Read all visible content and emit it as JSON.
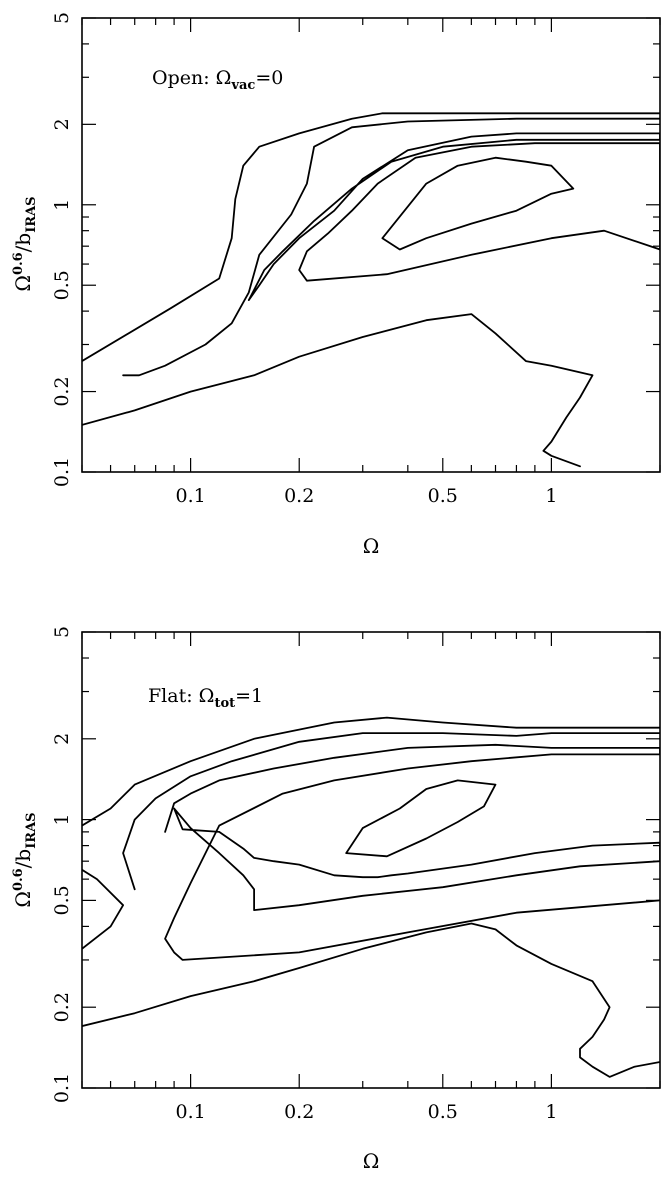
{
  "chart_data": [
    {
      "type": "contour",
      "annotation": {
        "prefix": "Open: ",
        "symbol": "Ω",
        "sub": "vac",
        "suffix": "=0"
      },
      "xlabel": "Ω",
      "ylabel": {
        "base": "Ω",
        "sup": "0.6",
        "mid": "/b",
        "sub": "IRAS"
      },
      "xscale": "log",
      "yscale": "log",
      "xlim": [
        0.05,
        2.0
      ],
      "ylim": [
        0.1,
        5.0
      ],
      "xticks": [
        {
          "v": 0.1,
          "label": "0.1"
        },
        {
          "v": 0.2,
          "label": "0.2"
        },
        {
          "v": 0.5,
          "label": "0.5"
        },
        {
          "v": 1,
          "label": "1"
        }
      ],
      "yticks": [
        {
          "v": 0.1,
          "label": "0.1"
        },
        {
          "v": 0.2,
          "label": "0.2"
        },
        {
          "v": 0.5,
          "label": "0.5"
        },
        {
          "v": 1,
          "label": "1"
        },
        {
          "v": 2,
          "label": "2"
        },
        {
          "v": 5,
          "label": "5"
        }
      ],
      "contours": [
        [
          [
            0.05,
            0.26
          ],
          [
            0.088,
            0.41
          ],
          [
            0.12,
            0.53
          ],
          [
            0.13,
            0.75
          ],
          [
            0.133,
            1.05
          ],
          [
            0.14,
            1.4
          ],
          [
            0.155,
            1.65
          ],
          [
            0.2,
            1.85
          ],
          [
            0.28,
            2.1
          ],
          [
            0.34,
            2.2
          ],
          [
            0.6,
            2.2
          ],
          [
            1.0,
            2.2
          ],
          [
            2.0,
            2.2
          ]
        ],
        [
          [
            0.065,
            0.23
          ],
          [
            0.072,
            0.23
          ],
          [
            0.085,
            0.25
          ],
          [
            0.11,
            0.3
          ],
          [
            0.13,
            0.36
          ],
          [
            0.145,
            0.47
          ],
          [
            0.155,
            0.65
          ],
          [
            0.19,
            0.92
          ],
          [
            0.21,
            1.2
          ],
          [
            0.22,
            1.65
          ],
          [
            0.28,
            1.95
          ],
          [
            0.4,
            2.05
          ],
          [
            0.8,
            2.1
          ],
          [
            2.0,
            2.1
          ]
        ],
        [
          [
            0.145,
            0.44
          ],
          [
            0.16,
            0.57
          ],
          [
            0.18,
            0.67
          ],
          [
            0.22,
            0.87
          ],
          [
            0.28,
            1.15
          ],
          [
            0.36,
            1.45
          ],
          [
            0.5,
            1.65
          ],
          [
            0.8,
            1.75
          ],
          [
            2.0,
            1.75
          ],
          [
            2.0,
            1.85
          ],
          [
            0.8,
            1.85
          ],
          [
            0.6,
            1.8
          ],
          [
            0.4,
            1.6
          ],
          [
            0.3,
            1.25
          ],
          [
            0.25,
            0.95
          ],
          [
            0.2,
            0.75
          ],
          [
            0.17,
            0.6
          ],
          [
            0.155,
            0.5
          ],
          [
            0.145,
            0.44
          ]
        ],
        [
          [
            0.2,
            0.57
          ],
          [
            0.21,
            0.67
          ],
          [
            0.24,
            0.78
          ],
          [
            0.28,
            0.95
          ],
          [
            0.33,
            1.2
          ],
          [
            0.42,
            1.5
          ],
          [
            0.6,
            1.65
          ],
          [
            0.9,
            1.7
          ],
          [
            2.0,
            1.7
          ],
          [
            2.0,
            0.68
          ],
          [
            1.4,
            0.8
          ],
          [
            1.0,
            0.75
          ],
          [
            0.6,
            0.65
          ],
          [
            0.35,
            0.55
          ],
          [
            0.21,
            0.52
          ],
          [
            0.2,
            0.57
          ]
        ],
        [
          [
            0.34,
            0.75
          ],
          [
            0.45,
            1.2
          ],
          [
            0.55,
            1.4
          ],
          [
            0.7,
            1.5
          ],
          [
            0.85,
            1.45
          ],
          [
            1.0,
            1.4
          ],
          [
            1.15,
            1.15
          ],
          [
            1.0,
            1.1
          ],
          [
            0.8,
            0.95
          ],
          [
            0.6,
            0.85
          ],
          [
            0.45,
            0.75
          ],
          [
            0.38,
            0.68
          ],
          [
            0.34,
            0.75
          ]
        ],
        [
          [
            0.05,
            0.15
          ],
          [
            0.07,
            0.17
          ],
          [
            0.1,
            0.2
          ],
          [
            0.15,
            0.23
          ],
          [
            0.2,
            0.27
          ],
          [
            0.3,
            0.32
          ],
          [
            0.45,
            0.37
          ],
          [
            0.6,
            0.39
          ],
          [
            0.7,
            0.33
          ],
          [
            0.85,
            0.26
          ],
          [
            1.0,
            0.25
          ],
          [
            1.3,
            0.23
          ],
          [
            1.2,
            0.19
          ],
          [
            1.1,
            0.16
          ],
          [
            1.0,
            0.13
          ],
          [
            0.95,
            0.12
          ],
          [
            1.0,
            0.115
          ],
          [
            1.2,
            0.105
          ]
        ]
      ]
    },
    {
      "type": "contour",
      "annotation": {
        "prefix": "Flat: ",
        "symbol": "Ω",
        "sub": "tot",
        "suffix": "=1"
      },
      "xlabel": "Ω",
      "ylabel": {
        "base": "Ω",
        "sup": "0.6",
        "mid": "/b",
        "sub": "IRAS"
      },
      "xscale": "log",
      "yscale": "log",
      "xlim": [
        0.05,
        2.0
      ],
      "ylim": [
        0.1,
        5.0
      ],
      "xticks": [
        {
          "v": 0.1,
          "label": "0.1"
        },
        {
          "v": 0.2,
          "label": "0.2"
        },
        {
          "v": 0.5,
          "label": "0.5"
        },
        {
          "v": 1,
          "label": "1"
        }
      ],
      "yticks": [
        {
          "v": 0.1,
          "label": "0.1"
        },
        {
          "v": 0.2,
          "label": "0.2"
        },
        {
          "v": 0.5,
          "label": "0.5"
        },
        {
          "v": 1,
          "label": "1"
        },
        {
          "v": 2,
          "label": "2"
        },
        {
          "v": 5,
          "label": "5"
        }
      ],
      "contours": [
        [
          [
            0.05,
            0.95
          ],
          [
            0.06,
            1.1
          ],
          [
            0.07,
            1.35
          ],
          [
            0.1,
            1.65
          ],
          [
            0.15,
            2.0
          ],
          [
            0.25,
            2.3
          ],
          [
            0.35,
            2.4
          ],
          [
            0.5,
            2.3
          ],
          [
            0.8,
            2.2
          ],
          [
            1.0,
            2.2
          ],
          [
            2.0,
            2.2
          ]
        ],
        [
          [
            0.05,
            0.65
          ],
          [
            0.055,
            0.6
          ],
          [
            0.065,
            0.48
          ],
          [
            0.06,
            0.4
          ],
          [
            0.05,
            0.33
          ]
        ],
        [
          [
            0.07,
            0.55
          ],
          [
            0.065,
            0.75
          ],
          [
            0.07,
            1.0
          ],
          [
            0.08,
            1.2
          ],
          [
            0.1,
            1.45
          ],
          [
            0.13,
            1.65
          ],
          [
            0.2,
            1.95
          ],
          [
            0.3,
            2.1
          ],
          [
            0.5,
            2.1
          ],
          [
            0.8,
            2.05
          ],
          [
            1.0,
            2.1
          ],
          [
            2.0,
            2.1
          ]
        ],
        [
          [
            0.085,
            0.9
          ],
          [
            0.09,
            1.15
          ],
          [
            0.1,
            1.25
          ],
          [
            0.12,
            1.4
          ],
          [
            0.17,
            1.55
          ],
          [
            0.25,
            1.7
          ],
          [
            0.4,
            1.85
          ],
          [
            0.7,
            1.9
          ],
          [
            1.0,
            1.85
          ],
          [
            2.0,
            1.85
          ],
          [
            2.0,
            1.75
          ],
          [
            1.0,
            1.75
          ],
          [
            0.6,
            1.65
          ],
          [
            0.4,
            1.55
          ],
          [
            0.25,
            1.4
          ],
          [
            0.18,
            1.25
          ],
          [
            0.12,
            0.95
          ],
          [
            0.11,
            0.75
          ],
          [
            0.1,
            0.58
          ],
          [
            0.09,
            0.43
          ],
          [
            0.085,
            0.36
          ],
          [
            0.09,
            0.32
          ],
          [
            0.095,
            0.3
          ],
          [
            0.2,
            0.32
          ],
          [
            0.4,
            0.38
          ],
          [
            0.8,
            0.45
          ],
          [
            2.0,
            0.5
          ]
        ],
        [
          [
            0.09,
            1.1
          ],
          [
            0.095,
            0.92
          ],
          [
            0.12,
            0.9
          ],
          [
            0.14,
            0.78
          ],
          [
            0.15,
            0.72
          ],
          [
            0.17,
            0.7
          ],
          [
            0.2,
            0.68
          ],
          [
            0.25,
            0.62
          ],
          [
            0.3,
            0.61
          ],
          [
            0.33,
            0.61
          ],
          [
            0.36,
            0.62
          ],
          [
            0.4,
            0.63
          ],
          [
            0.6,
            0.68
          ],
          [
            0.9,
            0.75
          ],
          [
            1.3,
            0.8
          ],
          [
            2.0,
            0.82
          ],
          [
            2.0,
            0.7
          ],
          [
            1.2,
            0.67
          ],
          [
            0.8,
            0.62
          ],
          [
            0.5,
            0.56
          ],
          [
            0.3,
            0.52
          ],
          [
            0.2,
            0.48
          ],
          [
            0.15,
            0.46
          ],
          [
            0.15,
            0.55
          ],
          [
            0.14,
            0.62
          ],
          [
            0.12,
            0.75
          ],
          [
            0.1,
            0.93
          ],
          [
            0.09,
            1.1
          ]
        ],
        [
          [
            0.27,
            0.75
          ],
          [
            0.3,
            0.93
          ],
          [
            0.38,
            1.1
          ],
          [
            0.45,
            1.3
          ],
          [
            0.55,
            1.4
          ],
          [
            0.7,
            1.35
          ],
          [
            0.65,
            1.12
          ],
          [
            0.55,
            0.98
          ],
          [
            0.45,
            0.85
          ],
          [
            0.35,
            0.73
          ],
          [
            0.27,
            0.75
          ]
        ],
        [
          [
            0.05,
            0.17
          ],
          [
            0.07,
            0.19
          ],
          [
            0.1,
            0.22
          ],
          [
            0.15,
            0.25
          ],
          [
            0.2,
            0.28
          ],
          [
            0.3,
            0.33
          ],
          [
            0.45,
            0.38
          ],
          [
            0.6,
            0.41
          ],
          [
            0.7,
            0.39
          ],
          [
            0.8,
            0.34
          ],
          [
            1.0,
            0.29
          ],
          [
            1.3,
            0.25
          ],
          [
            1.45,
            0.2
          ],
          [
            1.4,
            0.18
          ],
          [
            1.3,
            0.155
          ],
          [
            1.2,
            0.14
          ],
          [
            1.2,
            0.13
          ],
          [
            1.3,
            0.12
          ],
          [
            1.45,
            0.11
          ],
          [
            1.7,
            0.12
          ],
          [
            2.0,
            0.125
          ]
        ]
      ]
    }
  ]
}
